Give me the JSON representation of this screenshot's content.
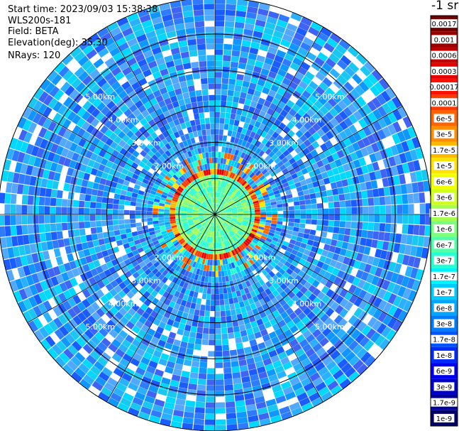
{
  "info": {
    "start_time": "Start time: 2023/09/03 15:38:38",
    "instrument": "WLS200s-181",
    "field": "Field: BETA",
    "elevation": "Elevation(deg): 35.30",
    "nrays": "NRays: 120"
  },
  "colorbar": {
    "unit": "-1 sr",
    "labels": [
      "0.0017",
      "0.001",
      "0.0006",
      "0.0003",
      "0.00017",
      "0.0001",
      "6e-5",
      "3e-5",
      "1.7e-5",
      "1e-5",
      "6e-6",
      "3e-6",
      "1.7e-6",
      "1e-6",
      "6e-7",
      "3e-7",
      "1.7e-7",
      "1e-7",
      "6e-8",
      "3e-8",
      "1.7e-8",
      "1e-8",
      "6e-9",
      "3e-9",
      "1.7e-9",
      "1e-9"
    ],
    "colors": [
      "#700000",
      "#980000",
      "#c00000",
      "#e80000",
      "#ff1000",
      "#ff3a00",
      "#ff6400",
      "#ff8e00",
      "#ffb800",
      "#ffe200",
      "#f2ff00",
      "#d0ff20",
      "#a6ff50",
      "#7cff7a",
      "#50ffa6",
      "#26ffd0",
      "#00f4ff",
      "#00ccff",
      "#00a6ff",
      "#007cff",
      "#0054ff",
      "#002aff",
      "#0000f0",
      "#0000c8",
      "#000098",
      "#000068"
    ]
  },
  "chart_data": {
    "type": "polar-ppi",
    "field": "BETA",
    "nrays": 120,
    "range_rings_km": [
      1,
      2,
      3,
      4,
      5,
      6
    ],
    "range_labels": [
      "2.00km",
      "3.00km",
      "4.00km",
      "5.00km"
    ],
    "radial_spokes_deg": [
      0,
      30,
      60,
      90,
      120,
      150,
      180,
      210,
      240,
      270,
      300,
      330
    ],
    "ring_label_azimuths_deg": [
      45,
      135,
      225,
      315
    ],
    "max_range_km": 6.0,
    "features": {
      "near_field_ring_km": [
        0.8,
        1.1
      ],
      "aerosol_layer_km": [
        1.0,
        1.6
      ],
      "aerosol_layer_beta": "1e-4 to 1e-3",
      "background_beta": "1e-8 to 1e-7"
    }
  }
}
